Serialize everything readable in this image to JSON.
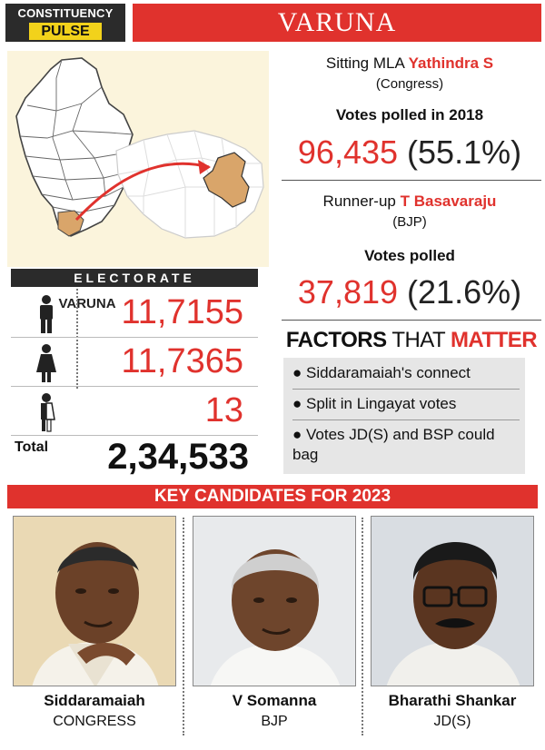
{
  "header": {
    "badge_line1": "CONSTITUENCY",
    "badge_line2": "PULSE",
    "title": "VARUNA"
  },
  "map": {
    "label": "VARUNA",
    "arrow_color": "#e0322d",
    "highlight_color": "#d9a56a"
  },
  "electorate": {
    "heading": "ELECTORATE",
    "rows": [
      {
        "icon": "male-icon",
        "value": "11,7155"
      },
      {
        "icon": "female-icon",
        "value": "11,7365"
      },
      {
        "icon": "transgender-icon",
        "value": "13"
      }
    ],
    "total_label": "Total",
    "total_value": "2,34,533"
  },
  "sitting": {
    "prefix": "Sitting MLA ",
    "name": "Yathindra S",
    "party": "(Congress)",
    "votes_heading": "Votes polled in 2018",
    "votes": "96,435",
    "percent": "(55.1%)"
  },
  "runner_up": {
    "prefix": "Runner-up ",
    "name": "T Basavaraju",
    "party": "(BJP)",
    "votes_heading": "Votes polled",
    "votes": "37,819",
    "percent": "(21.6%)"
  },
  "factors": {
    "title_a": "FACTORS",
    "title_b": " THAT ",
    "title_c": "MATTER",
    "items": [
      "● Siddaramaiah's connect",
      "● Split in Lingayat votes",
      "● Votes JD(S) and BSP could bag"
    ]
  },
  "candidates": {
    "heading": "KEY CANDIDATES FOR 2023",
    "list": [
      {
        "name": "Siddaramaiah",
        "party": "CONGRESS"
      },
      {
        "name": "V Somanna",
        "party": "BJP"
      },
      {
        "name": "Bharathi Shankar",
        "party": "JD(S)"
      }
    ]
  },
  "colors": {
    "accent_red": "#e0322d",
    "badge_yellow": "#f2d21b",
    "dark": "#2b2b2b",
    "panel_cream": "#fbf4dc",
    "factors_gray": "#e6e6e6"
  }
}
